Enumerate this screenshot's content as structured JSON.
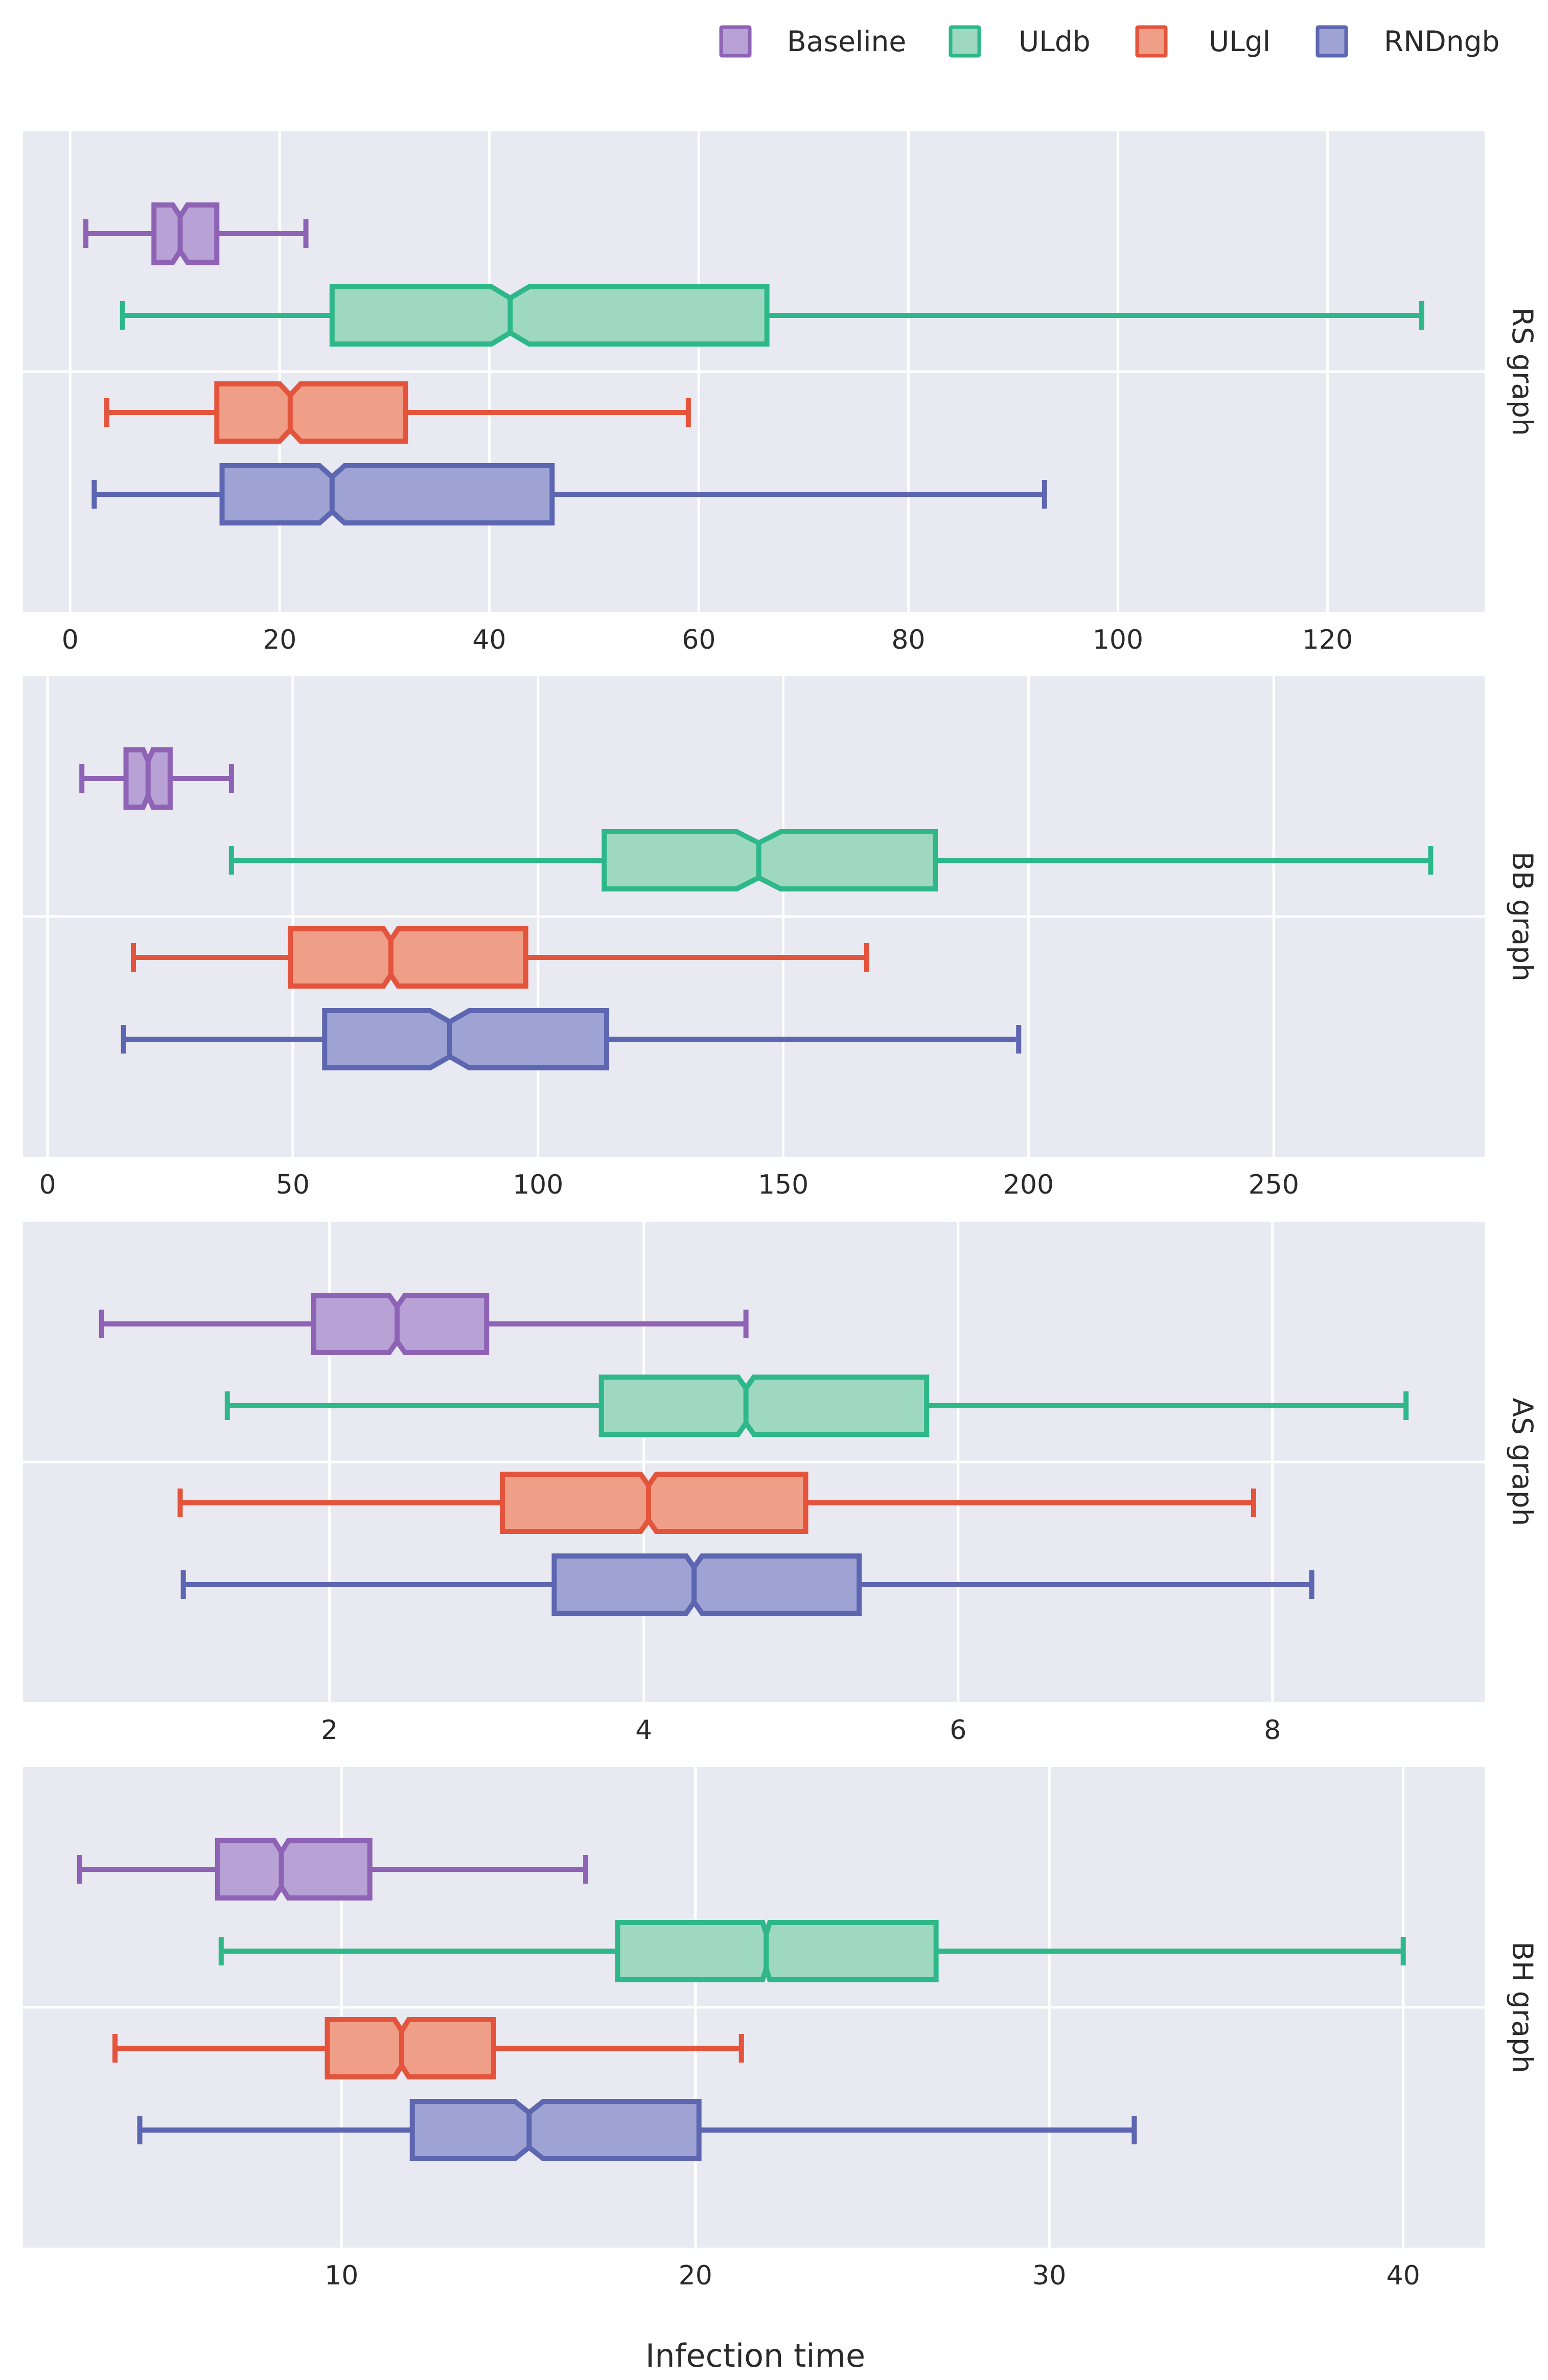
{
  "chart_data": {
    "type": "box",
    "orientation": "horizontal",
    "notched": true,
    "xlabel": "Infection time",
    "legend": {
      "placement": "top-right",
      "entries": [
        "Baseline",
        "ULdb",
        "ULgl",
        "RNDngb"
      ]
    },
    "series": [
      {
        "name": "Baseline",
        "stroke": "#8e63b5",
        "fill": "#b7a1d5"
      },
      {
        "name": "ULdb",
        "stroke": "#2eb88a",
        "fill": "#9ed8c0"
      },
      {
        "name": "ULgl",
        "stroke": "#e4533b",
        "fill": "#ef9f87"
      },
      {
        "name": "RNDngb",
        "stroke": "#5d66b0",
        "fill": "#9fa3d4"
      }
    ],
    "panels": [
      {
        "label": "RS graph",
        "xlim": [
          -4.5,
          135
        ],
        "ticks": [
          0,
          20,
          40,
          60,
          80,
          100,
          120
        ],
        "tick_labels": [
          "0",
          "20",
          "40",
          "60",
          "80",
          "100",
          "120"
        ],
        "boxes": [
          {
            "series": "Baseline",
            "min": 1.5,
            "q1": 8,
            "median": 10.5,
            "q3": 14,
            "max": 22.5,
            "notch_low": 9.8,
            "notch_high": 11.2
          },
          {
            "series": "ULdb",
            "min": 5,
            "q1": 25,
            "median": 42,
            "q3": 66.5,
            "max": 129,
            "notch_low": 40.2,
            "notch_high": 43.8
          },
          {
            "series": "ULgl",
            "min": 3.5,
            "q1": 14,
            "median": 21,
            "q3": 32,
            "max": 59,
            "notch_low": 20,
            "notch_high": 22
          },
          {
            "series": "RNDngb",
            "min": 2.3,
            "q1": 14.5,
            "median": 25,
            "q3": 46,
            "max": 93,
            "notch_low": 23.8,
            "notch_high": 26.2
          }
        ]
      },
      {
        "label": "BB graph",
        "xlim": [
          -5,
          293
        ],
        "ticks": [
          0,
          50,
          100,
          150,
          200,
          250
        ],
        "tick_labels": [
          "0",
          "50",
          "100",
          "150",
          "200",
          "250"
        ],
        "boxes": [
          {
            "series": "Baseline",
            "min": 7,
            "q1": 16,
            "median": 20.5,
            "q3": 25,
            "max": 37.5,
            "notch_low": 19.5,
            "notch_high": 21.5
          },
          {
            "series": "ULdb",
            "min": 37.5,
            "q1": 113.5,
            "median": 145,
            "q3": 181,
            "max": 282,
            "notch_low": 140.5,
            "notch_high": 149.5
          },
          {
            "series": "ULgl",
            "min": 17.5,
            "q1": 49.5,
            "median": 70,
            "q3": 97.5,
            "max": 167,
            "notch_low": 68.5,
            "notch_high": 71.5
          },
          {
            "series": "RNDngb",
            "min": 15.5,
            "q1": 56.5,
            "median": 82,
            "q3": 114,
            "max": 198,
            "notch_low": 78,
            "notch_high": 86
          }
        ]
      },
      {
        "label": "AS graph",
        "xlim": [
          0.05,
          9.35
        ],
        "ticks": [
          2,
          4,
          6,
          8
        ],
        "tick_labels": [
          "2",
          "4",
          "6",
          "8"
        ],
        "boxes": [
          {
            "series": "Baseline",
            "min": 0.55,
            "q1": 1.9,
            "median": 2.43,
            "q3": 3.0,
            "max": 4.65,
            "notch_low": 2.38,
            "notch_high": 2.48
          },
          {
            "series": "ULdb",
            "min": 1.35,
            "q1": 3.73,
            "median": 4.65,
            "q3": 5.8,
            "max": 8.85,
            "notch_low": 4.6,
            "notch_high": 4.7
          },
          {
            "series": "ULgl",
            "min": 1.05,
            "q1": 3.1,
            "median": 4.03,
            "q3": 5.03,
            "max": 7.88,
            "notch_low": 3.98,
            "notch_high": 4.08
          },
          {
            "series": "RNDngb",
            "min": 1.07,
            "q1": 3.43,
            "median": 4.32,
            "q3": 5.37,
            "max": 8.25,
            "notch_low": 4.27,
            "notch_high": 4.37
          }
        ]
      },
      {
        "label": "BH graph",
        "xlim": [
          1,
          42.3
        ],
        "ticks": [
          10,
          20,
          30,
          40
        ],
        "tick_labels": [
          "10",
          "20",
          "30",
          "40"
        ],
        "boxes": [
          {
            "series": "Baseline",
            "min": 2.6,
            "q1": 6.5,
            "median": 8.3,
            "q3": 10.8,
            "max": 16.9,
            "notch_low": 8.1,
            "notch_high": 8.5
          },
          {
            "series": "ULdb",
            "min": 6.6,
            "q1": 17.8,
            "median": 22,
            "q3": 26.8,
            "max": 40,
            "notch_low": 21.9,
            "notch_high": 22.1
          },
          {
            "series": "ULgl",
            "min": 3.6,
            "q1": 9.6,
            "median": 11.7,
            "q3": 14.3,
            "max": 21.3,
            "notch_low": 11.5,
            "notch_high": 11.9
          },
          {
            "series": "RNDngb",
            "min": 4.3,
            "q1": 12,
            "median": 15.3,
            "q3": 20.1,
            "max": 32.4,
            "notch_low": 14.9,
            "notch_high": 15.7
          }
        ]
      }
    ]
  }
}
